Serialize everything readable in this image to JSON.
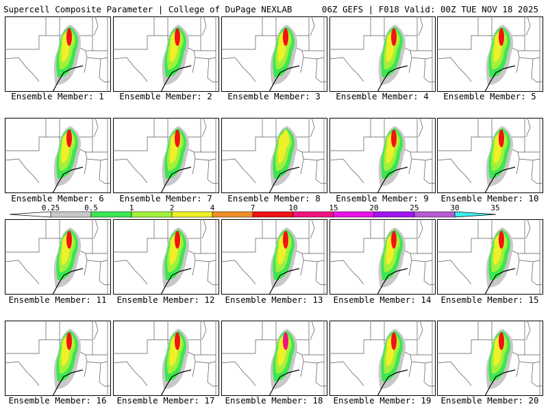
{
  "header": {
    "left": "Supercell Composite Parameter | College of DuPage NEXLAB",
    "right": "06Z GEFS | F018 Valid: 00Z TUE NOV 18 2025"
  },
  "members": [
    {
      "label": "Ensemble Member: 1",
      "peak": 7
    },
    {
      "label": "Ensemble Member: 2",
      "peak": 7
    },
    {
      "label": "Ensemble Member: 3",
      "peak": 7
    },
    {
      "label": "Ensemble Member: 4",
      "peak": 7
    },
    {
      "label": "Ensemble Member: 5",
      "peak": 7
    },
    {
      "label": "Ensemble Member: 6",
      "peak": 7
    },
    {
      "label": "Ensemble Member: 7",
      "peak": 7
    },
    {
      "label": "Ensemble Member: 8",
      "peak": 2
    },
    {
      "label": "Ensemble Member: 9",
      "peak": 7
    },
    {
      "label": "Ensemble Member: 10",
      "peak": 7
    },
    {
      "label": "Ensemble Member: 11",
      "peak": 7
    },
    {
      "label": "Ensemble Member: 12",
      "peak": 7
    },
    {
      "label": "Ensemble Member: 13",
      "peak": 7
    },
    {
      "label": "Ensemble Member: 14",
      "peak": 7
    },
    {
      "label": "Ensemble Member: 15",
      "peak": 7
    },
    {
      "label": "Ensemble Member: 16",
      "peak": 7
    },
    {
      "label": "Ensemble Member: 17",
      "peak": 7
    },
    {
      "label": "Ensemble Member: 18",
      "peak": 10
    },
    {
      "label": "Ensemble Member: 19",
      "peak": 7
    },
    {
      "label": "Ensemble Member: 20",
      "peak": 7
    }
  ],
  "colorbar": {
    "ticks": [
      "0.25",
      "0.5",
      "1",
      "2",
      "4",
      "7",
      "10",
      "15",
      "20",
      "25",
      "30",
      "35"
    ],
    "colors": [
      "#ffffff",
      "#c8c8c8",
      "#3ce650",
      "#a0f03c",
      "#f0f028",
      "#f08c28",
      "#f01414",
      "#f0147f",
      "#e614e6",
      "#a014f0",
      "#b45ad2",
      "#3cf0f0"
    ]
  }
}
